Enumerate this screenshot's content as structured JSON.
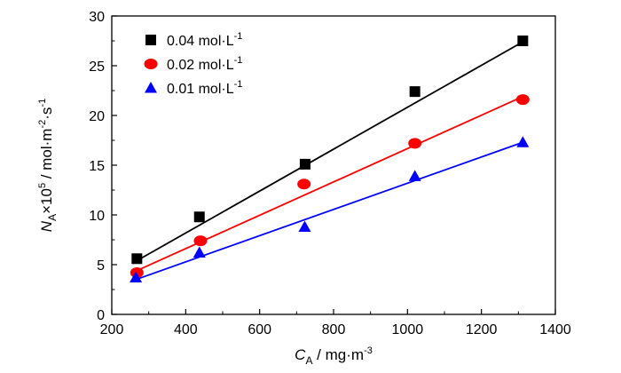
{
  "chart_data": {
    "type": "scatter",
    "xlabel": {
      "main": "C",
      "sub": "A",
      "unit": " / mg·m",
      "sup": "-3"
    },
    "ylabel": {
      "main": "N",
      "sub": "A",
      "mid": "×10",
      "sup1": "5",
      "unit": " / mol·m",
      "sup2": "-2",
      "tail": "·s",
      "sup3": "-1"
    },
    "xlim": [
      200,
      1400
    ],
    "ylim": [
      0,
      30
    ],
    "xticks": [
      "200",
      "400",
      "600",
      "800",
      "1000",
      "1200",
      "1400"
    ],
    "yticks": [
      "0",
      "5",
      "10",
      "15",
      "20",
      "25",
      "30"
    ],
    "legend_position": "top-left",
    "grid": false,
    "series": [
      {
        "name": "0.04 mol·L",
        "name_sup": "-1",
        "marker": "square",
        "color": "#000000",
        "points": [
          [
            268,
            5.6
          ],
          [
            437,
            9.8
          ],
          [
            723,
            15.1
          ],
          [
            1020,
            22.4
          ],
          [
            1312,
            27.5
          ]
        ],
        "fit": [
          [
            268,
            5.4
          ],
          [
            1312,
            27.4
          ]
        ]
      },
      {
        "name": "0.02 mol·L",
        "name_sup": "-1",
        "marker": "circle",
        "color": "#ff0000",
        "points": [
          [
            268,
            4.2
          ],
          [
            440,
            7.4
          ],
          [
            720,
            13.1
          ],
          [
            1020,
            17.2
          ],
          [
            1312,
            21.6
          ]
        ],
        "fit": [
          [
            268,
            4.4
          ],
          [
            1312,
            21.9
          ]
        ]
      },
      {
        "name": "0.01 mol·L",
        "name_sup": "-1",
        "marker": "triangle",
        "color": "#0000ff",
        "points": [
          [
            265,
            3.7
          ],
          [
            437,
            6.2
          ],
          [
            722,
            8.8
          ],
          [
            1020,
            13.9
          ],
          [
            1312,
            17.3
          ]
        ],
        "fit": [
          [
            265,
            3.5
          ],
          [
            1312,
            17.3
          ]
        ]
      }
    ]
  }
}
